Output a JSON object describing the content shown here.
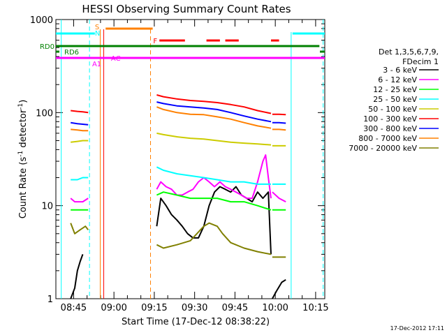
{
  "chart_data": {
    "type": "line",
    "title": "HESSI Observing Summary Count Rates",
    "xlabel": "Start Time (17-Dec-12 08:38:22)",
    "ylabel_main": "Count Rate (s",
    "ylabel_sup1": "-1",
    "ylabel_mid": " detector",
    "ylabel_sup2": "-1",
    "ylabel_end": ")",
    "ylim": [
      1,
      1000
    ],
    "yscale": "log",
    "xlim_minutes": [
      0,
      100
    ],
    "x_tick_labels": [
      "08:45",
      "09:00",
      "09:15",
      "09:30",
      "09:45",
      "10:00",
      "10:15"
    ],
    "x_tick_minutes": [
      6.6,
      21.6,
      36.6,
      51.6,
      66.6,
      81.6,
      96.6
    ],
    "y_tick_labels": [
      "1",
      "10",
      "100",
      "1000"
    ],
    "y_tick_values": [
      1,
      10,
      100,
      1000
    ],
    "legend_header": [
      "Det 1,3,5,6,7,9,",
      "FDecim 1"
    ],
    "legend_position": "right",
    "footer_date": "17-Dec-2012 17:11",
    "flag_labels": {
      "rd0": "RD0",
      "rd6": "RD6",
      "s": "S",
      "n": "N",
      "a1": "A1",
      "ac": "AC",
      "f": "F"
    },
    "colors": {
      "cyan": "#00ffff",
      "magenta": "#ff00ff",
      "green": "#008000",
      "orange": "#ff8000",
      "red": "#ff0000"
    },
    "series": [
      {
        "name": "3 - 6 keV",
        "color": "#000000",
        "seg1": {
          "x": [
            5.5,
            7,
            8,
            9,
            10
          ],
          "y": [
            1,
            1.3,
            2.0,
            2.5,
            3.0
          ]
        },
        "seg2": {
          "x": [
            37.5,
            39,
            41,
            43,
            45,
            47,
            49,
            51,
            53,
            55,
            57,
            59,
            61,
            63,
            65,
            67,
            69,
            71,
            73,
            75,
            77,
            79,
            80
          ],
          "y": [
            6,
            12,
            10,
            8,
            7,
            6,
            5,
            4.5,
            4.5,
            6,
            10,
            14,
            16,
            15,
            14,
            16,
            13,
            12,
            11,
            14,
            12,
            14,
            3
          ]
        },
        "seg3": {
          "x": [
            80.5,
            82,
            84,
            85.5
          ],
          "y": [
            1,
            1.2,
            1.5,
            1.6
          ]
        }
      },
      {
        "name": "6 - 12 keV",
        "color": "#ff00ff",
        "seg1": {
          "x": [
            5.5,
            7,
            10,
            12
          ],
          "y": [
            12,
            11,
            11,
            12
          ]
        },
        "seg2": {
          "x": [
            37.5,
            39,
            41,
            43,
            45,
            47,
            49,
            51,
            53,
            55,
            57,
            59,
            61,
            63,
            65,
            67,
            69,
            71,
            73,
            75,
            77,
            78,
            79,
            80
          ],
          "y": [
            15,
            18,
            16,
            15,
            13,
            13,
            14,
            15,
            18,
            20,
            18,
            16,
            18,
            16,
            15,
            14,
            13,
            12,
            12,
            18,
            30,
            35,
            20,
            12
          ]
        },
        "seg3": {
          "x": [
            80.5,
            83,
            85.5
          ],
          "y": [
            14,
            12,
            11
          ]
        }
      },
      {
        "name": "12 - 25 keV",
        "color": "#00ff00",
        "seg1": {
          "x": [
            5.5,
            8,
            10,
            12
          ],
          "y": [
            9,
            9,
            9,
            9
          ]
        },
        "seg2": {
          "x": [
            37.5,
            40,
            45,
            50,
            55,
            60,
            65,
            70,
            75,
            80
          ],
          "y": [
            13,
            14,
            13,
            12,
            12,
            12,
            11,
            11,
            10,
            9
          ]
        },
        "seg3": {
          "x": [
            80.5,
            83,
            85.5
          ],
          "y": [
            9,
            9,
            9
          ]
        }
      },
      {
        "name": "25 - 50 keV",
        "color": "#00ffff",
        "seg1": {
          "x": [
            5.5,
            8,
            10,
            12
          ],
          "y": [
            19,
            19,
            20,
            20
          ]
        },
        "seg2": {
          "x": [
            37.5,
            40,
            45,
            50,
            55,
            60,
            65,
            70,
            75,
            80
          ],
          "y": [
            26,
            24,
            22,
            21,
            20,
            19,
            18,
            18,
            17,
            17
          ]
        },
        "seg3": {
          "x": [
            80.5,
            83,
            85.5
          ],
          "y": [
            17,
            17,
            17
          ]
        }
      },
      {
        "name": "50 - 100 keV",
        "color": "#cccc00",
        "seg1": {
          "x": [
            5.5,
            8,
            10,
            12
          ],
          "y": [
            48,
            49,
            50,
            50
          ]
        },
        "seg2": {
          "x": [
            37.5,
            40,
            45,
            50,
            55,
            60,
            65,
            70,
            75,
            80
          ],
          "y": [
            60,
            58,
            55,
            53,
            52,
            50,
            48,
            47,
            46,
            45
          ]
        },
        "seg3": {
          "x": [
            80.5,
            83,
            85.5
          ],
          "y": [
            44,
            44,
            44
          ]
        }
      },
      {
        "name": "100 - 300 keV",
        "color": "#ff0000",
        "seg1": {
          "x": [
            5.5,
            8,
            10,
            12
          ],
          "y": [
            105,
            103,
            102,
            100
          ]
        },
        "seg2": {
          "x": [
            37.5,
            40,
            45,
            50,
            55,
            60,
            65,
            70,
            75,
            80
          ],
          "y": [
            155,
            148,
            140,
            135,
            132,
            128,
            122,
            115,
            105,
            98
          ]
        },
        "seg3": {
          "x": [
            80.5,
            83,
            85.5
          ],
          "y": [
            96,
            96,
            95
          ]
        }
      },
      {
        "name": "300 - 800 keV",
        "color": "#0000ff",
        "seg1": {
          "x": [
            5.5,
            8,
            10,
            12
          ],
          "y": [
            78,
            76,
            75,
            74
          ]
        },
        "seg2": {
          "x": [
            37.5,
            40,
            45,
            50,
            55,
            60,
            65,
            70,
            75,
            80
          ],
          "y": [
            130,
            125,
            118,
            115,
            112,
            108,
            100,
            92,
            85,
            80
          ]
        },
        "seg3": {
          "x": [
            80.5,
            83,
            85.5
          ],
          "y": [
            78,
            78,
            77
          ]
        }
      },
      {
        "name": "800 - 7000 keV",
        "color": "#ff8000",
        "seg1": {
          "x": [
            5.5,
            8,
            10,
            12
          ],
          "y": [
            66,
            65,
            64,
            64
          ]
        },
        "seg2": {
          "x": [
            37.5,
            40,
            45,
            50,
            55,
            60,
            65,
            70,
            75,
            80
          ],
          "y": [
            115,
            108,
            100,
            96,
            95,
            90,
            85,
            78,
            72,
            68
          ]
        },
        "seg3": {
          "x": [
            80.5,
            83,
            85.5
          ],
          "y": [
            66,
            66,
            65
          ]
        }
      },
      {
        "name": "7000 - 20000 keV",
        "color": "#808000",
        "seg1": {
          "x": [
            5.5,
            7,
            9,
            11,
            12
          ],
          "y": [
            6.5,
            5,
            5.5,
            6,
            5.5
          ]
        },
        "seg2": {
          "x": [
            37.5,
            40,
            45,
            50,
            55,
            57,
            60,
            62,
            65,
            70,
            75,
            80
          ],
          "y": [
            3.8,
            3.5,
            3.8,
            4.2,
            6,
            6.5,
            6,
            5,
            4,
            3.5,
            3.2,
            3.0
          ]
        },
        "seg3": {
          "x": [
            80.5,
            83,
            85.5
          ],
          "y": [
            2.8,
            2.8,
            2.8
          ]
        }
      }
    ]
  }
}
